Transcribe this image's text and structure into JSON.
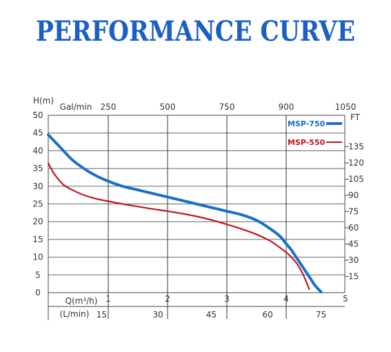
{
  "title": "PERFORMANCE CURVE",
  "colors": {
    "title": "#1c5fc4",
    "series_blue": "#1a6fc9",
    "series_red": "#c0161c"
  },
  "chart_data": {
    "type": "line",
    "title": "PERFORMANCE CURVE",
    "left_axis": {
      "label": "H(m)",
      "ticks": [
        0,
        5,
        10,
        15,
        20,
        25,
        30,
        35,
        40,
        45,
        50
      ],
      "range": [
        0,
        50
      ]
    },
    "right_axis": {
      "label": "FT",
      "ticks": [
        15,
        30,
        45,
        60,
        75,
        90,
        105,
        120,
        135
      ]
    },
    "top_axis": {
      "label": "Gal/min",
      "ticks": [
        250,
        500,
        750,
        900,
        1050
      ]
    },
    "bottom_axis": {
      "label": "Q(m3/h)",
      "label_display": "Q(m³/h)",
      "ticks": [
        1,
        2,
        3,
        4,
        5
      ],
      "range": [
        0,
        5
      ]
    },
    "bottom_axis_2": {
      "label": "(L/min)",
      "ticks": [
        15,
        30,
        45,
        60,
        75
      ]
    },
    "grid": true,
    "legend_position": "top-right",
    "series": [
      {
        "name": "MSP-750",
        "color": "#1a6fc9",
        "x": [
          0,
          0.2,
          0.4,
          0.6,
          0.8,
          1.0,
          1.25,
          1.5,
          1.75,
          2.0,
          2.25,
          2.5,
          2.75,
          3.0,
          3.25,
          3.5,
          3.7,
          3.9,
          4.0,
          4.1,
          4.2,
          4.3,
          4.4,
          4.5,
          4.6
        ],
        "y": [
          44.5,
          41,
          37.5,
          35,
          33,
          31.5,
          30,
          29,
          28,
          27,
          26,
          25,
          24,
          23,
          22,
          20.5,
          18.5,
          16,
          14,
          12,
          9.5,
          7,
          4.5,
          2,
          0.2
        ]
      },
      {
        "name": "MSP-550",
        "color": "#c0161c",
        "x": [
          0,
          0.1,
          0.25,
          0.4,
          0.6,
          0.8,
          1.0,
          1.25,
          1.5,
          1.75,
          2.0,
          2.25,
          2.5,
          2.75,
          3.0,
          3.25,
          3.5,
          3.75,
          4.0,
          4.1,
          4.2,
          4.3,
          4.4
        ],
        "y": [
          36.5,
          33.5,
          30.5,
          29,
          27.5,
          26.5,
          25.8,
          25,
          24.3,
          23.6,
          23,
          22.3,
          21.5,
          20.5,
          19.3,
          18,
          16.5,
          14.5,
          11.5,
          10,
          8,
          5,
          1
        ]
      }
    ]
  }
}
